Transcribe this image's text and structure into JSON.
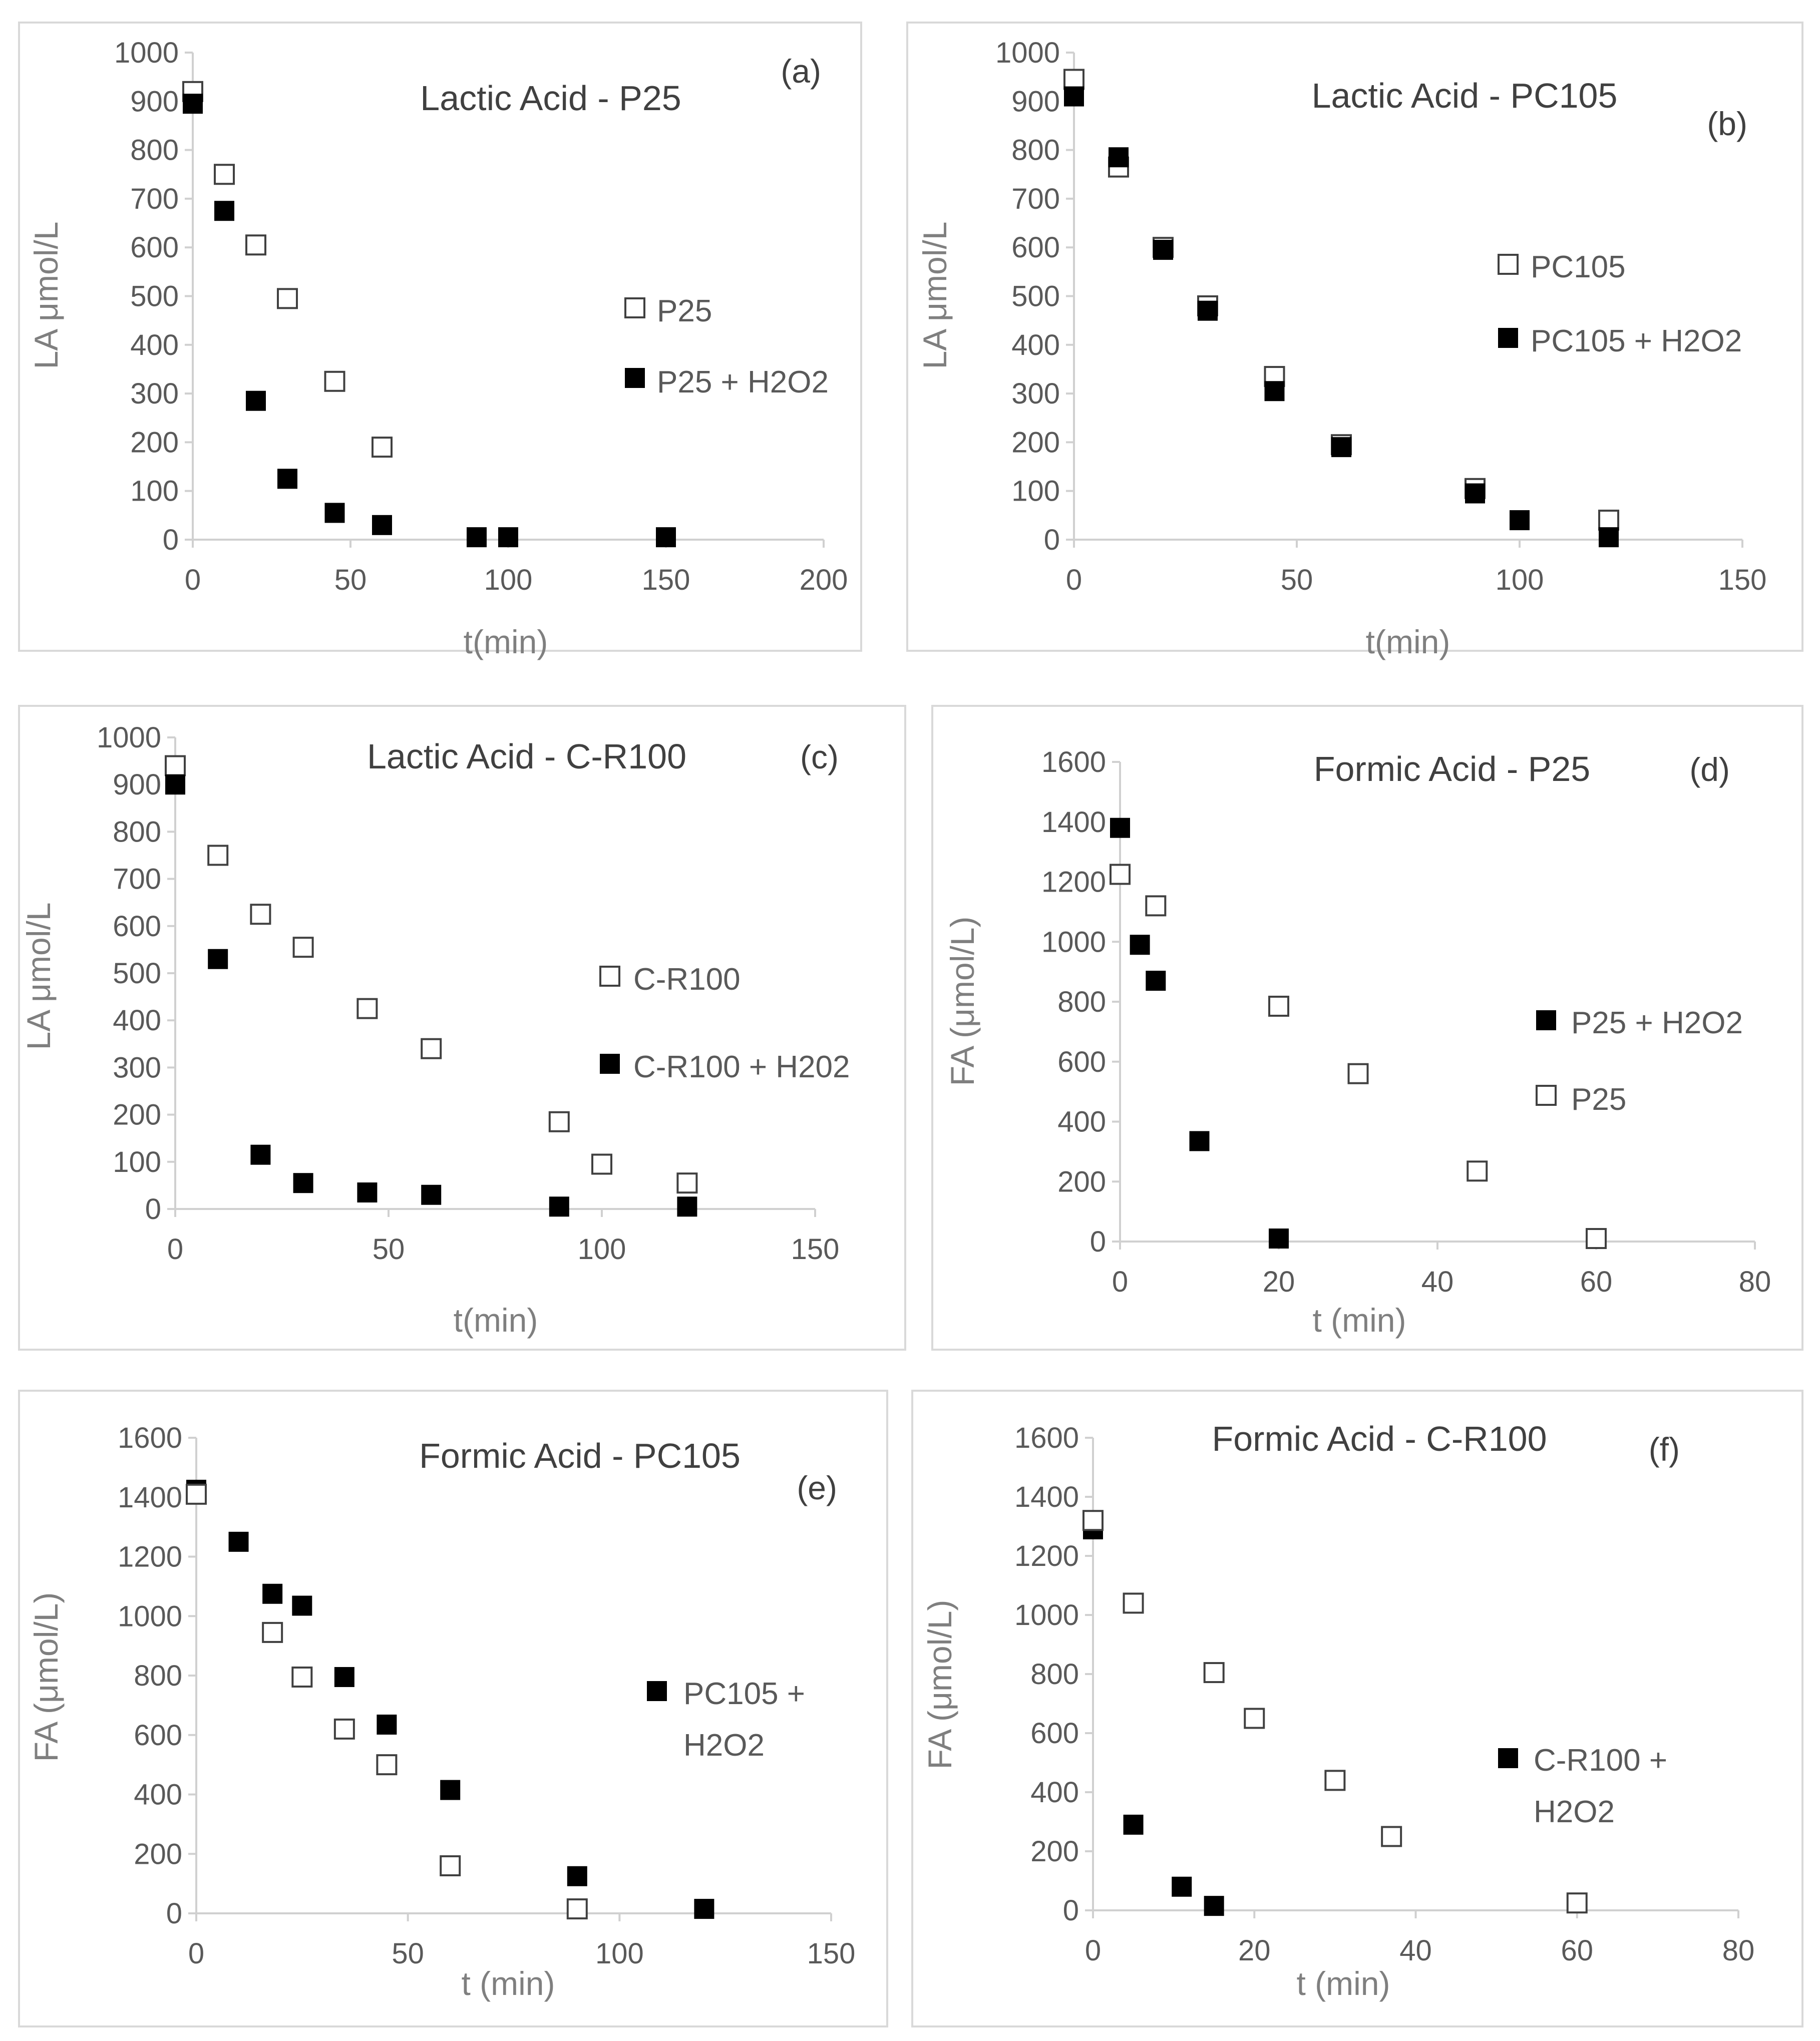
{
  "colors": {
    "filled": "#000000",
    "open_fill": "#ffffff",
    "open_stroke": "#404040",
    "axis": "#d0d0d0"
  },
  "chart_data": [
    {
      "type": "scatter",
      "tag": "(a)",
      "title": "Lactic Acid - P25",
      "xlabel": "t(min)",
      "ylabel": "LA μmol/L",
      "xlim": [
        0,
        200
      ],
      "xticks": [
        0,
        50,
        100,
        150,
        200
      ],
      "ylim": [
        0,
        1000
      ],
      "yticks": [
        0,
        100,
        200,
        300,
        400,
        500,
        600,
        700,
        800,
        900,
        1000
      ],
      "legend_placement": "right",
      "series": [
        {
          "name": "P25",
          "marker": "open",
          "x": [
            0,
            10,
            20,
            30,
            45,
            60
          ],
          "y": [
            920,
            750,
            605,
            495,
            325,
            190
          ]
        },
        {
          "name": "P25 + H2O2",
          "marker": "filled",
          "x": [
            0,
            10,
            20,
            30,
            45,
            60,
            90,
            100,
            150
          ],
          "y": [
            895,
            675,
            285,
            125,
            55,
            30,
            5,
            5,
            5
          ]
        }
      ]
    },
    {
      "type": "scatter",
      "tag": "(b)",
      "title": "Lactic Acid - PC105",
      "xlabel": "t(min)",
      "ylabel": "LA μmol/L",
      "xlim": [
        0,
        150
      ],
      "xticks": [
        0,
        50,
        100,
        150
      ],
      "ylim": [
        0,
        1000
      ],
      "yticks": [
        0,
        100,
        200,
        300,
        400,
        500,
        600,
        700,
        800,
        900,
        1000
      ],
      "legend_placement": "right",
      "series": [
        {
          "name": "PC105",
          "marker": "open",
          "x": [
            0,
            10,
            20,
            30,
            45,
            60,
            90,
            120
          ],
          "y": [
            945,
            765,
            600,
            480,
            335,
            195,
            105,
            40
          ]
        },
        {
          "name": "PC105 + H2O2",
          "marker": "filled",
          "x": [
            0,
            10,
            20,
            30,
            45,
            60,
            90,
            100,
            120
          ],
          "y": [
            910,
            785,
            595,
            470,
            305,
            190,
            95,
            40,
            5
          ]
        }
      ]
    },
    {
      "type": "scatter",
      "tag": "(c)",
      "title": "Lactic Acid - C-R100",
      "xlabel": "t(min)",
      "ylabel": "LA μmol/L",
      "xlim": [
        0,
        150
      ],
      "xticks": [
        0,
        50,
        100,
        150
      ],
      "ylim": [
        0,
        1000
      ],
      "yticks": [
        0,
        100,
        200,
        300,
        400,
        500,
        600,
        700,
        800,
        900,
        1000
      ],
      "legend_placement": "right",
      "series": [
        {
          "name": "C-R100",
          "marker": "open",
          "x": [
            0,
            10,
            20,
            30,
            45,
            60,
            90,
            100,
            120
          ],
          "y": [
            940,
            750,
            625,
            555,
            425,
            340,
            185,
            95,
            55
          ]
        },
        {
          "name": "C-R100 + H202",
          "marker": "filled",
          "x": [
            0,
            10,
            20,
            30,
            45,
            60,
            90,
            120
          ],
          "y": [
            900,
            530,
            115,
            55,
            35,
            30,
            5,
            5
          ]
        }
      ]
    },
    {
      "type": "scatter",
      "tag": "(d)",
      "title": "Formic Acid - P25",
      "xlabel": "t (min)",
      "ylabel": "FA (μmol/L)",
      "xlim": [
        0,
        80
      ],
      "xticks": [
        0,
        20,
        40,
        60,
        80
      ],
      "ylim": [
        0,
        1600
      ],
      "yticks": [
        0,
        200,
        400,
        600,
        800,
        1000,
        1200,
        1400,
        1600
      ],
      "legend_placement": "right",
      "series": [
        {
          "name": "P25 + H2O2",
          "marker": "filled",
          "x": [
            0,
            2.5,
            4.5,
            10,
            20
          ],
          "y": [
            1380,
            990,
            870,
            335,
            10
          ]
        },
        {
          "name": "P25",
          "marker": "open",
          "x": [
            0,
            4.5,
            20,
            30,
            45,
            60
          ],
          "y": [
            1225,
            1120,
            785,
            560,
            235,
            10
          ]
        }
      ]
    },
    {
      "type": "scatter",
      "tag": "(e)",
      "title": "Formic Acid - PC105",
      "xlabel": "t (min)",
      "ylabel": "FA (μmol/L)",
      "xlim": [
        0,
        150
      ],
      "xticks": [
        0,
        50,
        100,
        150
      ],
      "ylim": [
        0,
        1600
      ],
      "yticks": [
        0,
        200,
        400,
        600,
        800,
        1000,
        1200,
        1400,
        1600
      ],
      "legend_placement": "right",
      "series": [
        {
          "name": "PC105 + H2O2",
          "legend_lines": [
            "PC105 +",
            "H2O2"
          ],
          "marker": "filled",
          "x": [
            0,
            10,
            18,
            25,
            35,
            45,
            60,
            90,
            120
          ],
          "y": [
            1425,
            1250,
            1075,
            1035,
            795,
            635,
            415,
            125,
            15
          ]
        },
        {
          "name": "PC105",
          "marker": "open",
          "x": [
            0,
            18,
            25,
            35,
            45,
            60,
            90
          ],
          "y": [
            1410,
            945,
            795,
            620,
            500,
            160,
            15
          ]
        }
      ]
    },
    {
      "type": "scatter",
      "tag": "(f)",
      "title": "Formic Acid - C-R100",
      "xlabel": "t (min)",
      "ylabel": "FA (μmol/L)",
      "xlim": [
        0,
        80
      ],
      "xticks": [
        0,
        20,
        40,
        60,
        80
      ],
      "ylim": [
        0,
        1600
      ],
      "yticks": [
        0,
        200,
        400,
        600,
        800,
        1000,
        1200,
        1400,
        1600
      ],
      "legend_placement": "right",
      "series": [
        {
          "name": "C-R100 + H2O2",
          "legend_lines": [
            "C-R100 +",
            "H2O2"
          ],
          "marker": "filled",
          "x": [
            0,
            5,
            11,
            15
          ],
          "y": [
            1290,
            290,
            80,
            15
          ]
        },
        {
          "name": "C-R100",
          "marker": "open",
          "x": [
            0,
            5,
            15,
            20,
            30,
            37,
            60
          ],
          "y": [
            1320,
            1040,
            805,
            650,
            440,
            250,
            25
          ]
        }
      ]
    }
  ]
}
